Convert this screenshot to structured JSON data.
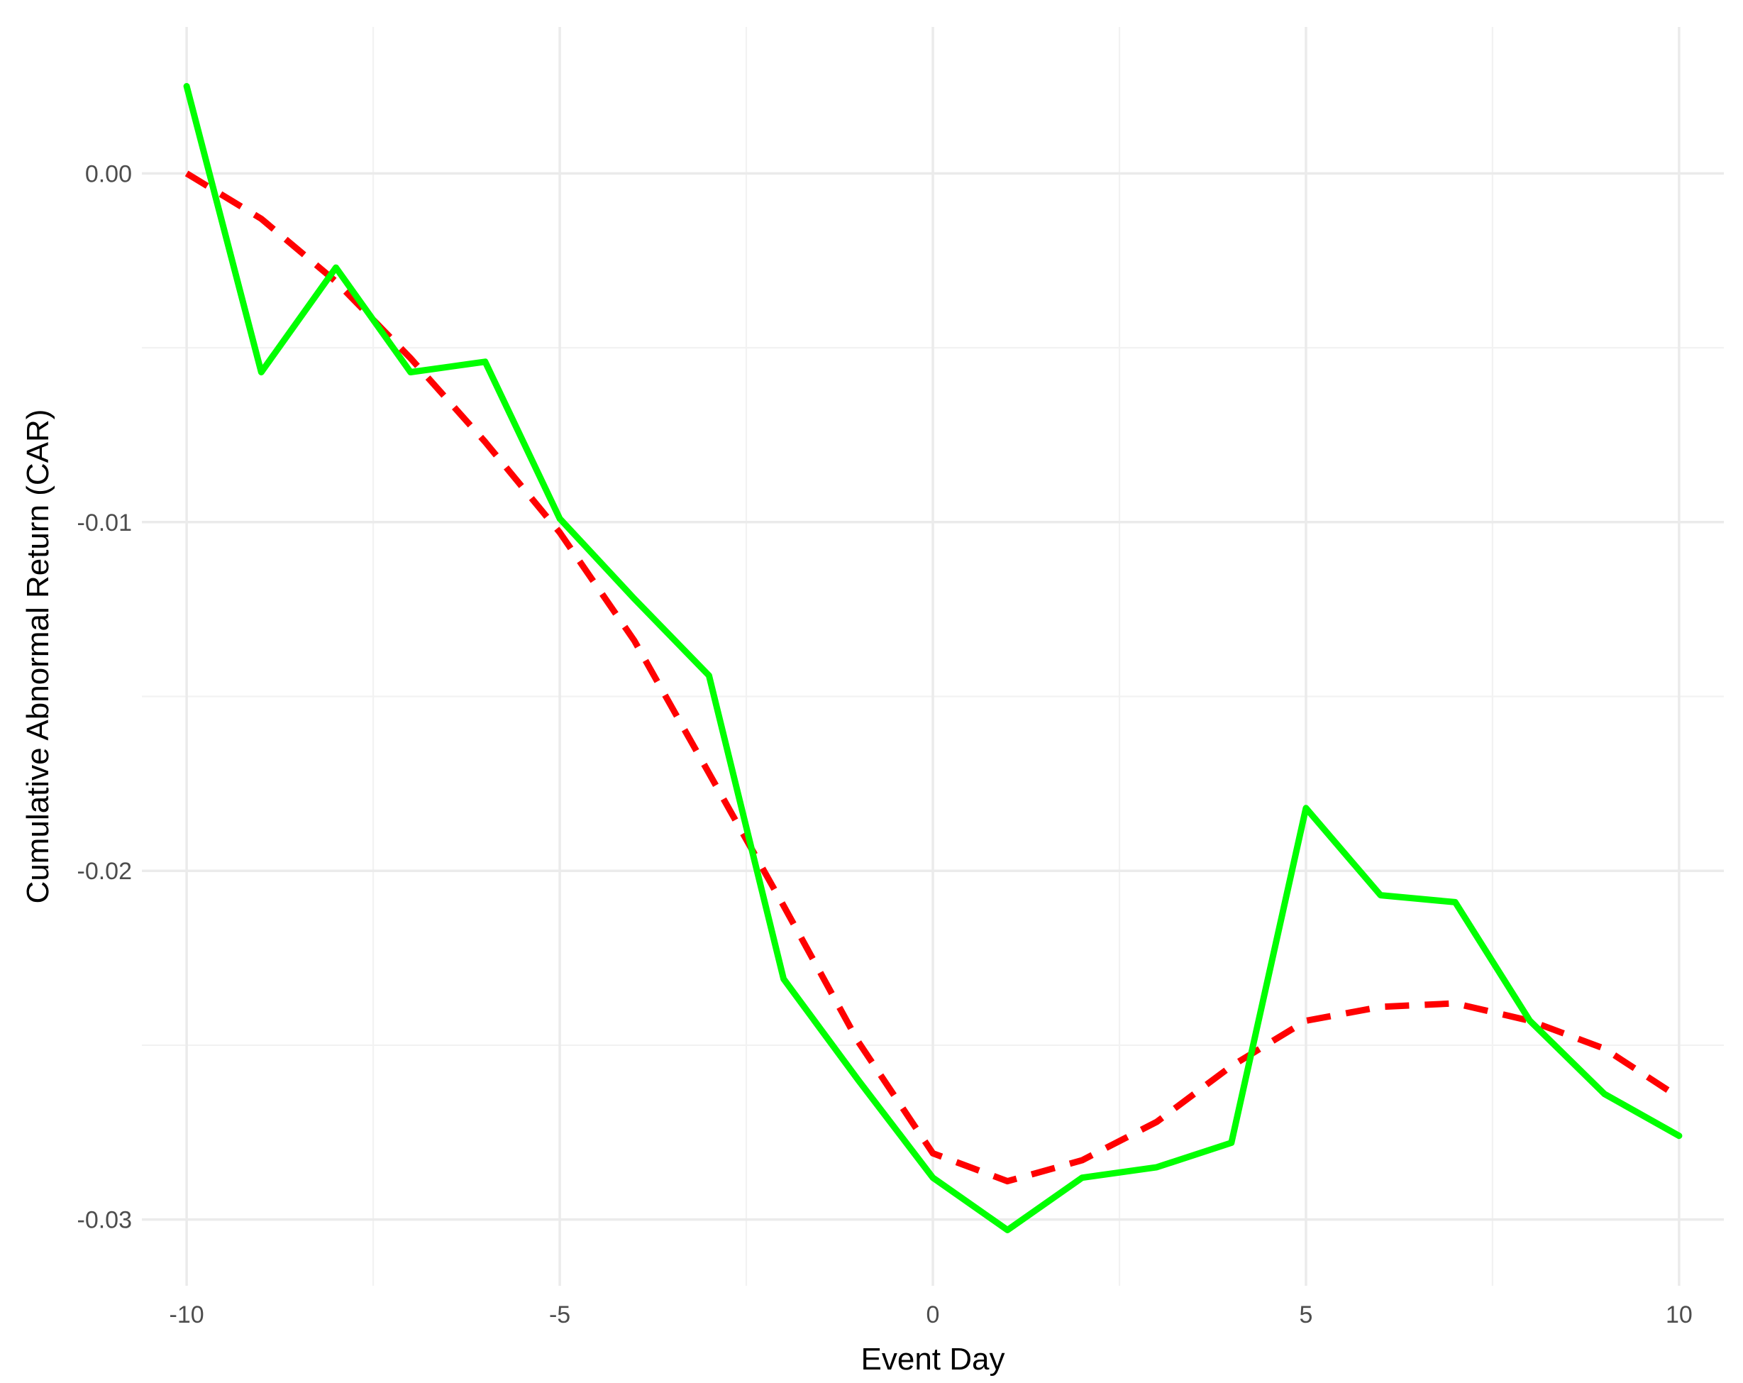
{
  "chart_data": {
    "type": "line",
    "title": "",
    "xlabel": "Event Day",
    "ylabel": "Cumulative Abnormal Return (CAR)",
    "xlim": [
      -10.6,
      10.6
    ],
    "ylim": [
      -0.0319,
      0.0042
    ],
    "x_ticks": [
      -10,
      -5,
      0,
      5,
      10
    ],
    "x_tick_labels": [
      "-10",
      "-5",
      "0",
      "5",
      "10"
    ],
    "y_ticks": [
      0.0,
      -0.01,
      -0.02,
      -0.03
    ],
    "y_tick_labels": [
      "0.00",
      "-0.01",
      "-0.02",
      "-0.03"
    ],
    "grid": true,
    "legend": "none",
    "series": [
      {
        "style": "solid",
        "color": "#00ff00",
        "x": [
          -10,
          -9,
          -8,
          -7,
          -6,
          -5,
          -4,
          -3,
          -2,
          -1,
          0,
          1,
          2,
          3,
          4,
          5,
          6,
          7,
          8,
          9,
          10
        ],
        "y": [
          0.0025,
          -0.0057,
          -0.0027,
          -0.0057,
          -0.0054,
          -0.0099,
          -0.0122,
          -0.0144,
          -0.0231,
          -0.026,
          -0.0288,
          -0.0303,
          -0.0288,
          -0.0285,
          -0.0278,
          -0.0182,
          -0.0207,
          -0.0209,
          -0.0243,
          -0.0264,
          -0.0276
        ]
      },
      {
        "style": "dashed",
        "color": "#ff0000",
        "x": [
          -10,
          -9,
          -8,
          -7,
          -6,
          -5,
          -4,
          -3,
          -2,
          -1,
          0,
          1,
          2,
          3,
          4,
          5,
          6,
          7,
          8,
          9,
          10
        ],
        "y": [
          0.0,
          -0.0013,
          -0.0031,
          -0.0053,
          -0.0077,
          -0.0103,
          -0.0134,
          -0.0172,
          -0.021,
          -0.0249,
          -0.0281,
          -0.0289,
          -0.0283,
          -0.0272,
          -0.0256,
          -0.0243,
          -0.0239,
          -0.0238,
          -0.0243,
          -0.0251,
          -0.0265
        ]
      }
    ]
  }
}
